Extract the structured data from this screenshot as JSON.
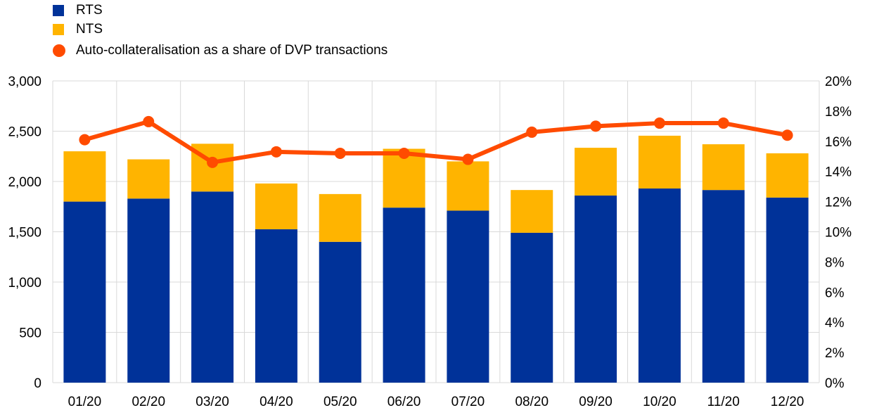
{
  "chart_data": {
    "type": "bar",
    "stacked": true,
    "categories": [
      "01/20",
      "02/20",
      "03/20",
      "04/20",
      "05/20",
      "06/20",
      "07/20",
      "08/20",
      "09/20",
      "10/20",
      "11/20",
      "12/20"
    ],
    "series": [
      {
        "name": "RTS",
        "type": "bar",
        "axis": "left",
        "color": "#003299",
        "values": [
          1800,
          1830,
          1900,
          1525,
          1400,
          1740,
          1710,
          1490,
          1860,
          1930,
          1915,
          1840
        ]
      },
      {
        "name": "NTS",
        "type": "bar",
        "axis": "left",
        "color": "#FFB400",
        "values": [
          500,
          390,
          475,
          455,
          475,
          585,
          490,
          425,
          475,
          525,
          455,
          440
        ]
      },
      {
        "name": "Auto-collateralisation as a share of DVP transactions",
        "type": "line",
        "axis": "right",
        "color": "#FF4B00",
        "values": [
          16.1,
          17.3,
          14.6,
          15.3,
          15.2,
          15.2,
          14.8,
          16.6,
          17.0,
          17.2,
          17.2,
          16.4
        ]
      }
    ],
    "left_axis": {
      "ylim": [
        0,
        3000
      ],
      "ticks": [
        0,
        500,
        1000,
        1500,
        2000,
        2500,
        3000
      ],
      "tick_labels": [
        "0",
        "500",
        "1,000",
        "1,500",
        "2,000",
        "2,500",
        "3,000"
      ]
    },
    "right_axis": {
      "ylim": [
        0,
        20
      ],
      "ticks": [
        0,
        2,
        4,
        6,
        8,
        10,
        12,
        14,
        16,
        18,
        20
      ],
      "tick_labels": [
        "0%",
        "2%",
        "4%",
        "6%",
        "8%",
        "10%",
        "12%",
        "14%",
        "16%",
        "18%",
        "20%"
      ]
    },
    "grid": true,
    "legend": "top-left"
  }
}
